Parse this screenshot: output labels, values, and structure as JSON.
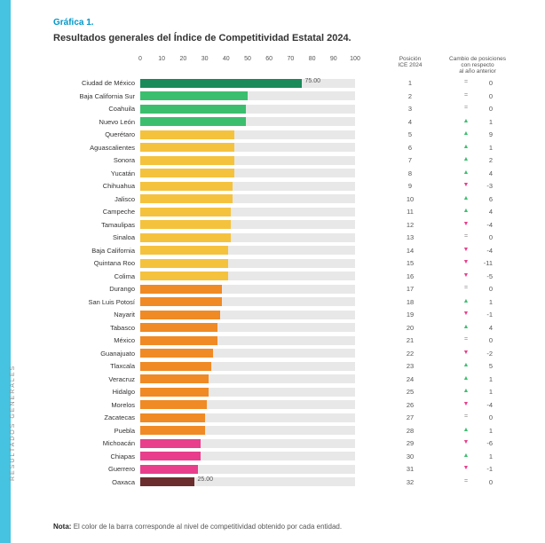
{
  "sidebar_color": "#46c3e0",
  "vertical_label": "RESULTADOS GENERALES",
  "figure_label": "Gráfica 1.",
  "figure_label_color": "#0097c7",
  "title": "Resultados generales del Índice de Competitividad Estatal 2024.",
  "axis": {
    "min": 0,
    "max": 100,
    "ticks": [
      0,
      10,
      20,
      30,
      40,
      50,
      60,
      70,
      80,
      90,
      100
    ]
  },
  "headers": {
    "position": "Posición\nICE 2024",
    "change": "Cambio de posiciones\ncon respecto\nal año anterior"
  },
  "colors": {
    "green_dark": "#1a8a5a",
    "green": "#3bbf6f",
    "yellow": "#f5c23e",
    "orange": "#f08a24",
    "pink": "#e83e8c",
    "dark": "#6b2d2d",
    "track": "#e8e8e8",
    "arrow_up": "#3bbf6f",
    "arrow_down": "#e83e8c",
    "arrow_eq": "#888"
  },
  "value_labels": [
    {
      "row": 0,
      "value": "75.00"
    },
    {
      "row": 31,
      "value": "25.00"
    }
  ],
  "rows": [
    {
      "state": "Ciudad de México",
      "value": 75.0,
      "color": "green_dark",
      "pos": 1,
      "dir": "=",
      "chg": 0
    },
    {
      "state": "Baja California Sur",
      "value": 50.0,
      "color": "green",
      "pos": 2,
      "dir": "=",
      "chg": 0
    },
    {
      "state": "Coahuila",
      "value": 49.0,
      "color": "green",
      "pos": 3,
      "dir": "=",
      "chg": 0
    },
    {
      "state": "Nuevo León",
      "value": 49.0,
      "color": "green",
      "pos": 4,
      "dir": "up",
      "chg": 1
    },
    {
      "state": "Querétaro",
      "value": 44.0,
      "color": "yellow",
      "pos": 5,
      "dir": "up",
      "chg": 9
    },
    {
      "state": "Aguascalientes",
      "value": 44.0,
      "color": "yellow",
      "pos": 6,
      "dir": "up",
      "chg": 1
    },
    {
      "state": "Sonora",
      "value": 44.0,
      "color": "yellow",
      "pos": 7,
      "dir": "up",
      "chg": 2
    },
    {
      "state": "Yucatán",
      "value": 44.0,
      "color": "yellow",
      "pos": 8,
      "dir": "up",
      "chg": 4
    },
    {
      "state": "Chihuahua",
      "value": 43.0,
      "color": "yellow",
      "pos": 9,
      "dir": "dn",
      "chg": -3
    },
    {
      "state": "Jalisco",
      "value": 43.0,
      "color": "yellow",
      "pos": 10,
      "dir": "up",
      "chg": 6
    },
    {
      "state": "Campeche",
      "value": 42.0,
      "color": "yellow",
      "pos": 11,
      "dir": "up",
      "chg": 4
    },
    {
      "state": "Tamaulipas",
      "value": 42.0,
      "color": "yellow",
      "pos": 12,
      "dir": "dn",
      "chg": -4
    },
    {
      "state": "Sinaloa",
      "value": 42.0,
      "color": "yellow",
      "pos": 13,
      "dir": "=",
      "chg": 0
    },
    {
      "state": "Baja California",
      "value": 41.0,
      "color": "yellow",
      "pos": 14,
      "dir": "dn",
      "chg": -4
    },
    {
      "state": "Quintana Roo",
      "value": 41.0,
      "color": "yellow",
      "pos": 15,
      "dir": "dn",
      "chg": -11
    },
    {
      "state": "Colima",
      "value": 41.0,
      "color": "yellow",
      "pos": 16,
      "dir": "dn",
      "chg": -5
    },
    {
      "state": "Durango",
      "value": 38.0,
      "color": "orange",
      "pos": 17,
      "dir": "=",
      "chg": 0
    },
    {
      "state": "San Luis Potosí",
      "value": 38.0,
      "color": "orange",
      "pos": 18,
      "dir": "up",
      "chg": 1
    },
    {
      "state": "Nayarit",
      "value": 37.0,
      "color": "orange",
      "pos": 19,
      "dir": "dn",
      "chg": -1
    },
    {
      "state": "Tabasco",
      "value": 36.0,
      "color": "orange",
      "pos": 20,
      "dir": "up",
      "chg": 4
    },
    {
      "state": "México",
      "value": 36.0,
      "color": "orange",
      "pos": 21,
      "dir": "=",
      "chg": 0
    },
    {
      "state": "Guanajuato",
      "value": 34.0,
      "color": "orange",
      "pos": 22,
      "dir": "dn",
      "chg": -2
    },
    {
      "state": "Tlaxcala",
      "value": 33.0,
      "color": "orange",
      "pos": 23,
      "dir": "up",
      "chg": 5
    },
    {
      "state": "Veracruz",
      "value": 32.0,
      "color": "orange",
      "pos": 24,
      "dir": "up",
      "chg": 1
    },
    {
      "state": "Hidalgo",
      "value": 32.0,
      "color": "orange",
      "pos": 25,
      "dir": "up",
      "chg": 1
    },
    {
      "state": "Morelos",
      "value": 31.0,
      "color": "orange",
      "pos": 26,
      "dir": "dn",
      "chg": -4
    },
    {
      "state": "Zacatecas",
      "value": 30.0,
      "color": "orange",
      "pos": 27,
      "dir": "=",
      "chg": 0
    },
    {
      "state": "Puebla",
      "value": 30.0,
      "color": "orange",
      "pos": 28,
      "dir": "up",
      "chg": 1
    },
    {
      "state": "Michoacán",
      "value": 28.0,
      "color": "pink",
      "pos": 29,
      "dir": "dn",
      "chg": -6
    },
    {
      "state": "Chiapas",
      "value": 28.0,
      "color": "pink",
      "pos": 30,
      "dir": "up",
      "chg": 1
    },
    {
      "state": "Guerrero",
      "value": 27.0,
      "color": "pink",
      "pos": 31,
      "dir": "dn",
      "chg": -1
    },
    {
      "state": "Oaxaca",
      "value": 25.0,
      "color": "dark",
      "pos": 32,
      "dir": "=",
      "chg": 0
    }
  ],
  "note_label": "Nota:",
  "note_text": "El color de la barra corresponde al nivel de competitividad obtenido por cada entidad."
}
